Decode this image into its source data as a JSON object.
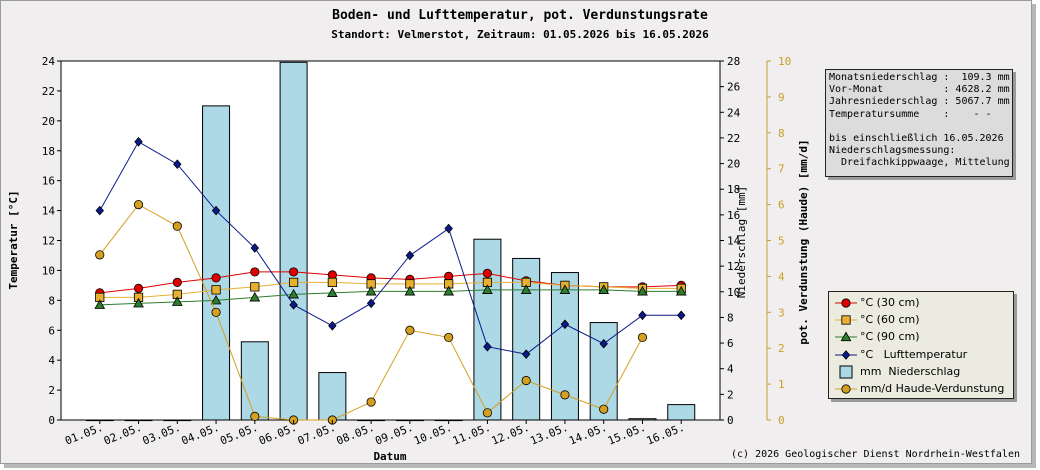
{
  "chart_data": {
    "type": "bar+line",
    "title": "Boden- und Lufttemperatur, pot. Verdunstungsrate",
    "subtitle": "Standort: Velmerstot, Zeitraum: 01.05.2026 bis 16.05.2026",
    "xlabel": "Datum",
    "ylabel_left": "Temperatur [°C]",
    "ylabel_right1": "Niederschlag [mm]",
    "ylabel_right2": "pot. Verdunstung (Haude) [mm/d]",
    "categories": [
      "01.05.",
      "02.05.",
      "03.05.",
      "04.05.",
      "05.05.",
      "06.05.",
      "07.05.",
      "08.05.",
      "09.05.",
      "10.05.",
      "11.05.",
      "12.05.",
      "13.05.",
      "14.05.",
      "15.05.",
      "16.05."
    ],
    "y_left": {
      "min": 0,
      "max": 24,
      "ticks": [
        "0",
        "2",
        "4",
        "6",
        "8",
        "10",
        "12",
        "14",
        "16",
        "18",
        "20",
        "22",
        "24"
      ]
    },
    "y_right1": {
      "min": 0,
      "max": 28,
      "ticks": [
        "0",
        "2",
        "4",
        "6",
        "8",
        "10",
        "12",
        "14",
        "16",
        "18",
        "20",
        "22",
        "24",
        "26",
        "28"
      ]
    },
    "y_right2": {
      "min": 0,
      "max": 10,
      "ticks": [
        "0",
        "1",
        "2",
        "3",
        "4",
        "5",
        "6",
        "7",
        "8",
        "9",
        "10"
      ]
    },
    "series": [
      {
        "name": "°C (30 cm)",
        "axis": "left",
        "kind": "line",
        "marker": "circle",
        "color": "#e00000",
        "values": [
          8.5,
          8.8,
          9.2,
          9.5,
          9.9,
          9.9,
          9.7,
          9.5,
          9.4,
          9.6,
          9.8,
          9.3,
          9.0,
          8.9,
          8.9,
          9.0
        ]
      },
      {
        "name": "°C (60 cm)",
        "axis": "left",
        "kind": "line",
        "marker": "square",
        "color": "#e8b030",
        "values": [
          8.2,
          8.2,
          8.4,
          8.7,
          8.9,
          9.2,
          9.2,
          9.1,
          9.1,
          9.1,
          9.2,
          9.2,
          9.0,
          8.9,
          8.8,
          8.8
        ]
      },
      {
        "name": "°C (90 cm)",
        "axis": "left",
        "kind": "line",
        "marker": "triangle",
        "color": "#2e7d2e",
        "values": [
          7.7,
          7.8,
          7.9,
          8.0,
          8.2,
          8.4,
          8.5,
          8.6,
          8.6,
          8.6,
          8.7,
          8.7,
          8.7,
          8.7,
          8.6,
          8.6
        ]
      },
      {
        "name": "°C   Lufttemperatur",
        "axis": "left",
        "kind": "line",
        "marker": "diamond",
        "color": "#0a1a8c",
        "values": [
          14.0,
          18.6,
          17.1,
          14.0,
          11.5,
          7.7,
          6.3,
          7.8,
          11.0,
          12.8,
          4.9,
          4.4,
          6.4,
          5.1,
          7.0,
          7.0
        ]
      },
      {
        "name": "mm  Niederschlag",
        "axis": "right1",
        "kind": "bar",
        "color": "#add8e6",
        "values": [
          0,
          0,
          0,
          24.5,
          6.1,
          27.9,
          3.7,
          0,
          0,
          0,
          14.1,
          12.6,
          11.5,
          7.6,
          0.1,
          1.2
        ]
      },
      {
        "name": "mm/d Haude-Verdunstung",
        "axis": "right2",
        "kind": "line",
        "marker": "circle",
        "color": "#d4a020",
        "values": [
          4.6,
          6.0,
          5.4,
          3.0,
          0.1,
          0.0,
          0.0,
          0.5,
          2.5,
          2.3,
          0.2,
          1.1,
          0.7,
          0.3,
          2.3,
          null
        ]
      }
    ],
    "legend_position": "right",
    "grid": false
  },
  "info_box": {
    "lines": [
      "Monatsniederschlag :  109.3 mm",
      "Vor-Monat          : 4628.2 mm",
      "Jahresniederschlag : 5067.7 mm",
      "Temperatursumme    :    - -",
      "",
      "bis einschließlich 16.05.2026",
      "Niederschlagsmessung:",
      "  Dreifachkippwaage, Mittelung"
    ]
  },
  "copyright": "(c) 2026 Geologischer Dienst Nordrhein-Westfalen",
  "colors": {
    "background": "#f0eeee",
    "axis_right2": "#c8a028",
    "bar_fill": "#add8e6"
  }
}
